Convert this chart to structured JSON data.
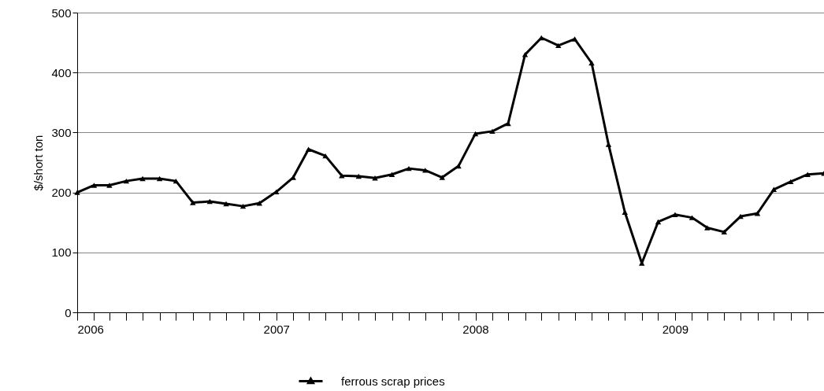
{
  "chart_data": {
    "type": "line",
    "ylabel": "$/short ton",
    "x": [
      "2006-01",
      "2006-02",
      "2006-03",
      "2006-04",
      "2006-05",
      "2006-06",
      "2006-07",
      "2006-08",
      "2006-09",
      "2006-10",
      "2006-11",
      "2006-12",
      "2007-01",
      "2007-02",
      "2007-03",
      "2007-04",
      "2007-05",
      "2007-06",
      "2007-07",
      "2007-08",
      "2007-09",
      "2007-10",
      "2007-11",
      "2007-12",
      "2008-01",
      "2008-02",
      "2008-03",
      "2008-04",
      "2008-05",
      "2008-06",
      "2008-07",
      "2008-08",
      "2008-09",
      "2008-10",
      "2008-11",
      "2008-12",
      "2009-01",
      "2009-02",
      "2009-03",
      "2009-04",
      "2009-05",
      "2009-06",
      "2009-07",
      "2009-08",
      "2009-09",
      "2009-10"
    ],
    "series": [
      {
        "name": "ferrous scrap prices",
        "color": "#000000",
        "values": [
          200,
          212,
          212,
          219,
          223,
          223,
          219,
          183,
          185,
          181,
          177,
          182,
          201,
          225,
          272,
          261,
          228,
          227,
          224,
          230,
          240,
          237,
          225,
          244,
          298,
          302,
          315,
          430,
          458,
          445,
          456,
          416,
          280,
          167,
          82,
          151,
          163,
          158,
          141,
          134,
          160,
          165,
          205,
          218,
          230,
          232
        ]
      }
    ],
    "xlim": [
      "2006-01",
      "2009-10"
    ],
    "xticks": [
      {
        "value": "2006-01",
        "label": "2006"
      },
      {
        "value": "2006-02",
        "label": null
      },
      {
        "value": "2006-03",
        "label": null
      },
      {
        "value": "2006-04",
        "label": null
      },
      {
        "value": "2006-05",
        "label": null
      },
      {
        "value": "2006-06",
        "label": null
      },
      {
        "value": "2006-07",
        "label": null
      },
      {
        "value": "2006-08",
        "label": null
      },
      {
        "value": "2006-09",
        "label": null
      },
      {
        "value": "2006-10",
        "label": null
      },
      {
        "value": "2006-11",
        "label": null
      },
      {
        "value": "2006-12",
        "label": null
      },
      {
        "value": "2007-01",
        "label": "2007"
      },
      {
        "value": "2007-02",
        "label": null
      },
      {
        "value": "2007-03",
        "label": null
      },
      {
        "value": "2007-04",
        "label": null
      },
      {
        "value": "2007-05",
        "label": null
      },
      {
        "value": "2007-06",
        "label": null
      },
      {
        "value": "2007-07",
        "label": null
      },
      {
        "value": "2007-08",
        "label": null
      },
      {
        "value": "2007-09",
        "label": null
      },
      {
        "value": "2007-10",
        "label": null
      },
      {
        "value": "2007-11",
        "label": null
      },
      {
        "value": "2007-12",
        "label": null
      },
      {
        "value": "2008-01",
        "label": "2008"
      },
      {
        "value": "2008-02",
        "label": null
      },
      {
        "value": "2008-03",
        "label": null
      },
      {
        "value": "2008-04",
        "label": null
      },
      {
        "value": "2008-05",
        "label": null
      },
      {
        "value": "2008-06",
        "label": null
      },
      {
        "value": "2008-07",
        "label": null
      },
      {
        "value": "2008-08",
        "label": null
      },
      {
        "value": "2008-09",
        "label": null
      },
      {
        "value": "2008-10",
        "label": null
      },
      {
        "value": "2008-11",
        "label": null
      },
      {
        "value": "2008-12",
        "label": null
      },
      {
        "value": "2009-01",
        "label": "2009"
      },
      {
        "value": "2009-02",
        "label": null
      },
      {
        "value": "2009-03",
        "label": null
      },
      {
        "value": "2009-04",
        "label": null
      },
      {
        "value": "2009-05",
        "label": null
      },
      {
        "value": "2009-06",
        "label": null
      },
      {
        "value": "2009-07",
        "label": null
      },
      {
        "value": "2009-08",
        "label": null
      },
      {
        "value": "2009-09",
        "label": null
      }
    ],
    "ylim": [
      0,
      500
    ],
    "yticks": [
      0,
      100,
      200,
      300,
      400,
      500
    ],
    "grid": "y",
    "legend": "bottom",
    "marker": "triangle",
    "line_style": "solid"
  }
}
